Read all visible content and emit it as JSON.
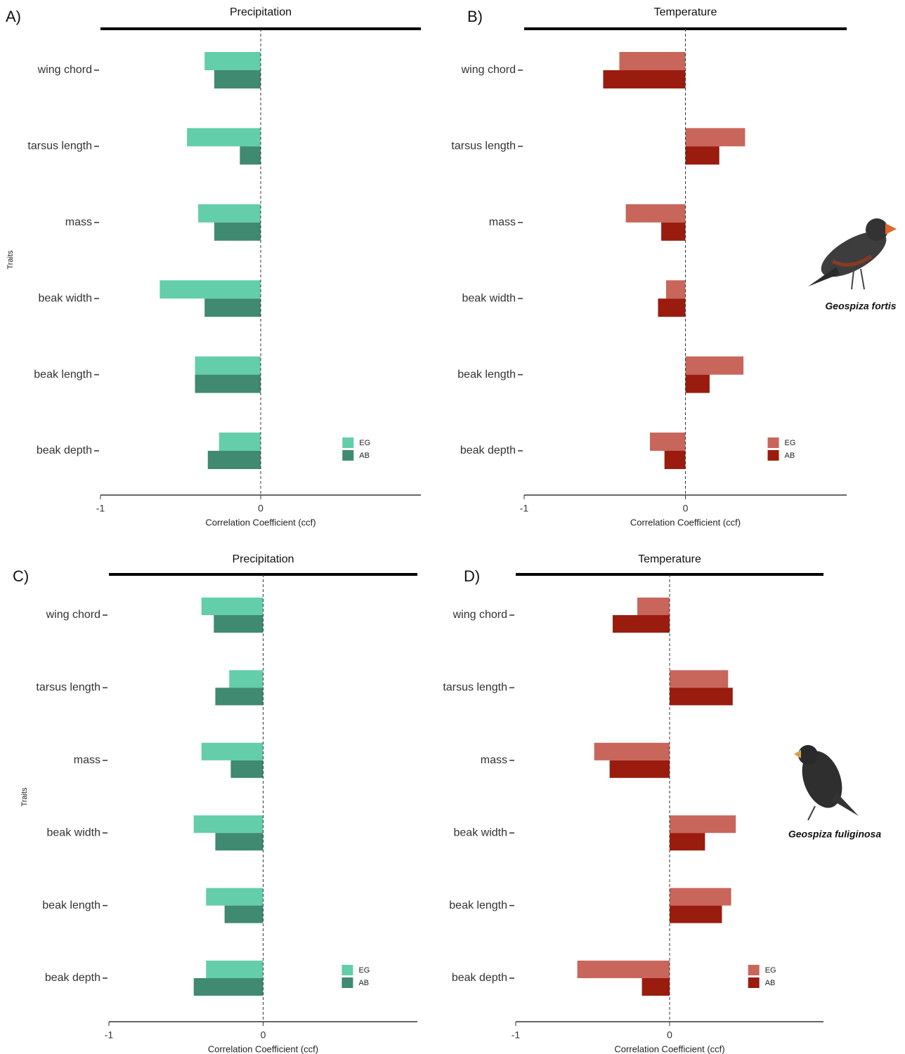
{
  "chart_data": [
    {
      "type": "barh",
      "panel_label": "A)",
      "title": "Precipitation",
      "xlabel": "Correlation Coefficient (ccf)",
      "ylabel": "Traits",
      "categories": [
        "wing chord",
        "tarsus length",
        "mass",
        "beak width",
        "beak length",
        "beak depth"
      ],
      "series": [
        {
          "name": "EG",
          "color": "#63cea9",
          "values": [
            -0.35,
            -0.46,
            -0.39,
            -0.63,
            -0.41,
            -0.26
          ]
        },
        {
          "name": "AB",
          "color": "#3f8a71",
          "values": [
            -0.29,
            -0.13,
            -0.29,
            -0.35,
            -0.41,
            -0.33
          ]
        }
      ],
      "xlim": [
        -1,
        1
      ],
      "xticks": [
        -1,
        0
      ],
      "legend": "bottom-right"
    },
    {
      "type": "barh",
      "panel_label": "B)",
      "title": "Temperature",
      "xlabel": "Correlation Coefficient (ccf)",
      "categories": [
        "wing chord",
        "tarsus length",
        "mass",
        "beak width",
        "beak length",
        "beak depth"
      ],
      "series": [
        {
          "name": "EG",
          "color": "#c8665b",
          "values": [
            -0.41,
            0.37,
            -0.37,
            -0.12,
            0.36,
            -0.22
          ]
        },
        {
          "name": "AB",
          "color": "#9a1c0e",
          "values": [
            -0.51,
            0.21,
            -0.15,
            -0.17,
            0.15,
            -0.13
          ]
        }
      ],
      "xlim": [
        -1,
        1
      ],
      "xticks": [
        -1,
        0
      ],
      "legend": "bottom-right",
      "annotation": "Geospiza fortis"
    },
    {
      "type": "barh",
      "panel_label": "C)",
      "title": "Precipitation",
      "xlabel": "Correlation Coefficient (ccf)",
      "ylabel": "Traits",
      "categories": [
        "wing chord",
        "tarsus length",
        "mass",
        "beak width",
        "beak length",
        "beak depth"
      ],
      "series": [
        {
          "name": "EG",
          "color": "#63cea9",
          "values": [
            -0.4,
            -0.22,
            -0.4,
            -0.45,
            -0.37,
            -0.37
          ]
        },
        {
          "name": "AB",
          "color": "#3f8a71",
          "values": [
            -0.32,
            -0.31,
            -0.21,
            -0.31,
            -0.25,
            -0.45
          ]
        }
      ],
      "xlim": [
        -1,
        1
      ],
      "xticks": [
        -1,
        0
      ],
      "legend": "bottom-right"
    },
    {
      "type": "barh",
      "panel_label": "D)",
      "title": "Temperature",
      "xlabel": "Correlation Coefficient (ccf)",
      "categories": [
        "wing chord",
        "tarsus length",
        "mass",
        "beak width",
        "beak length",
        "beak depth"
      ],
      "series": [
        {
          "name": "EG",
          "color": "#c8665b",
          "values": [
            -0.21,
            0.38,
            -0.49,
            0.43,
            0.4,
            -0.6
          ]
        },
        {
          "name": "AB",
          "color": "#9a1c0e",
          "values": [
            -0.37,
            0.41,
            -0.39,
            0.23,
            0.34,
            -0.18
          ]
        }
      ],
      "xlim": [
        -1,
        1
      ],
      "xticks": [
        -1,
        0
      ],
      "legend": "bottom-right",
      "annotation": "Geospiza fuliginosa"
    }
  ]
}
